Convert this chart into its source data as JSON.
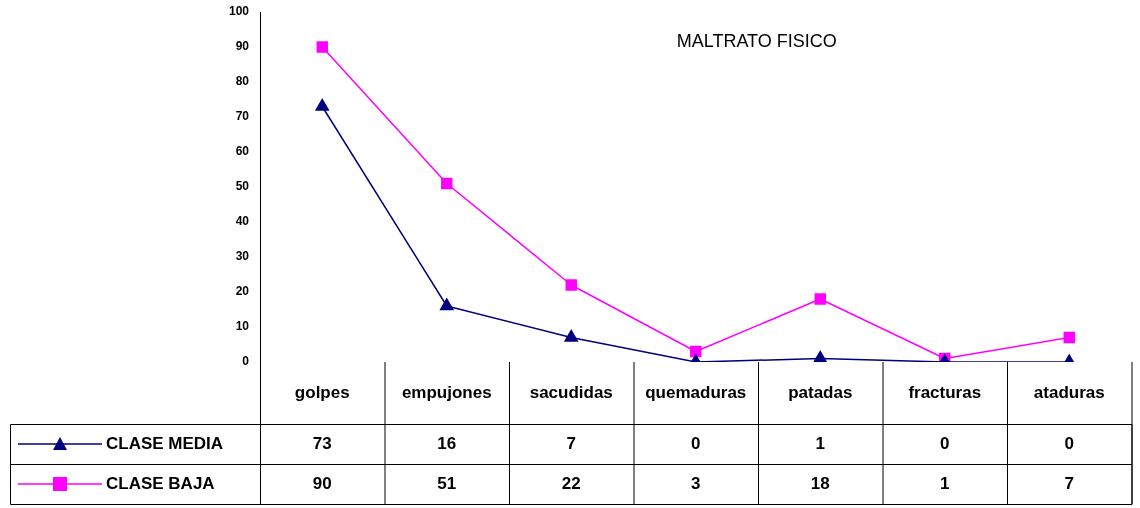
{
  "chart_data": {
    "type": "line",
    "title": "MALTRATO FISICO",
    "categories": [
      "golpes",
      "empujones",
      "sacudidas",
      "quemaduras",
      "patadas",
      "fracturas",
      "ataduras"
    ],
    "series": [
      {
        "name": "CLASE MEDIA",
        "color": "#000080",
        "marker": "triangle",
        "values": [
          73,
          16,
          7,
          0,
          1,
          0,
          0
        ]
      },
      {
        "name": "CLASE BAJA",
        "color": "#ff00ff",
        "marker": "square",
        "values": [
          90,
          51,
          22,
          3,
          18,
          1,
          7
        ]
      }
    ],
    "ylim": [
      0,
      100
    ],
    "yticks": [
      0,
      10,
      20,
      30,
      40,
      50,
      60,
      70,
      80,
      90,
      100
    ],
    "grid": false,
    "legend": "bottom",
    "data_labels": true
  }
}
